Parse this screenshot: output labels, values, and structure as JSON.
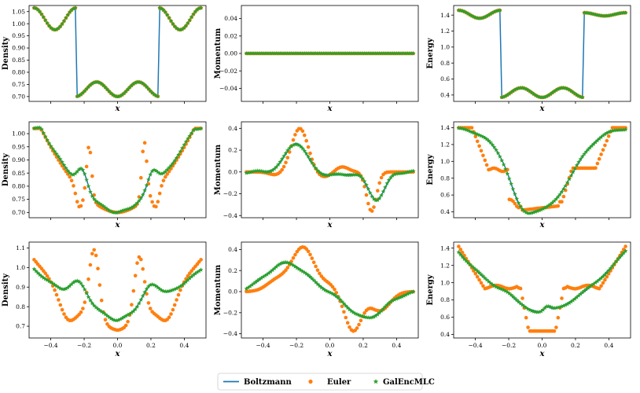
{
  "colors": {
    "boltzmann": "#1f77b4",
    "euler": "#ff7f0e",
    "galenc": "#2ca02c"
  },
  "legend": {
    "placement": "bottom-center",
    "boltzmann": "Boltzmann",
    "euler": "Euler",
    "galenc": "GalEncMLC"
  },
  "chart_data": [
    {
      "type": "line",
      "row": 0,
      "var": "density",
      "ylabel": "Density",
      "xlabel": "x",
      "xlim": [
        -0.53,
        0.53
      ],
      "ylim": [
        0.68,
        1.075
      ],
      "yticks": [
        "0.70",
        "0.75",
        "0.80",
        "0.85",
        "0.90",
        "0.95",
        "1.00",
        "1.05"
      ],
      "xticks": [],
      "series": [
        "Boltzmann",
        "Euler",
        "GalEncMLC"
      ]
    },
    {
      "type": "line",
      "row": 0,
      "var": "momentum",
      "ylabel": "Momentum",
      "xlabel": "x",
      "xlim": [
        -0.53,
        0.53
      ],
      "ylim": [
        -0.055,
        0.055
      ],
      "yticks": [
        "−0.04",
        "−0.02",
        "0.00",
        "0.02",
        "0.04"
      ],
      "xticks": [],
      "series": [
        "Boltzmann",
        "Euler",
        "GalEncMLC"
      ]
    },
    {
      "type": "line",
      "row": 0,
      "var": "energy",
      "ylabel": "Energy",
      "xlabel": "x",
      "xlim": [
        -0.53,
        0.53
      ],
      "ylim": [
        0.32,
        1.52
      ],
      "yticks": [
        "0.4",
        "0.6",
        "0.8",
        "1.0",
        "1.2",
        "1.4"
      ],
      "xticks": [],
      "series": [
        "Boltzmann",
        "Euler",
        "GalEncMLC"
      ]
    },
    {
      "type": "line",
      "row": 1,
      "var": "density",
      "ylabel": "Density",
      "xlabel": "x",
      "xlim": [
        -0.53,
        0.53
      ],
      "ylim": [
        0.68,
        1.045
      ],
      "yticks": [
        "0.70",
        "0.75",
        "0.80",
        "0.85",
        "0.90",
        "0.95",
        "1.00"
      ],
      "xticks": [],
      "series": [
        "Boltzmann",
        "Euler",
        "GalEncMLC"
      ]
    },
    {
      "type": "line",
      "row": 1,
      "var": "momentum",
      "ylabel": "Momentum",
      "xlabel": "x",
      "xlim": [
        -0.53,
        0.53
      ],
      "ylim": [
        -0.42,
        0.46
      ],
      "yticks": [
        "−0.4",
        "−0.2",
        "0.0",
        "0.2",
        "0.4"
      ],
      "xticks": [],
      "series": [
        "Boltzmann",
        "Euler",
        "GalEncMLC"
      ]
    },
    {
      "type": "line",
      "row": 1,
      "var": "energy",
      "ylabel": "Energy",
      "xlabel": "x",
      "xlim": [
        -0.53,
        0.53
      ],
      "ylim": [
        0.33,
        1.47
      ],
      "yticks": [
        "0.4",
        "0.6",
        "0.8",
        "1.0",
        "1.2",
        "1.4"
      ],
      "xticks": [],
      "series": [
        "Boltzmann",
        "Euler",
        "GalEncMLC"
      ]
    },
    {
      "type": "line",
      "row": 2,
      "var": "density",
      "ylabel": "Density",
      "xlabel": "x",
      "xlim": [
        -0.53,
        0.53
      ],
      "ylim": [
        0.64,
        1.13
      ],
      "yticks": [
        "0.7",
        "0.8",
        "0.9",
        "1.0",
        "1.1"
      ],
      "xticks": [
        "−0.4",
        "−0.2",
        "0.0",
        "0.2",
        "0.4"
      ],
      "series": [
        "Boltzmann",
        "Euler",
        "GalEncMLC"
      ]
    },
    {
      "type": "line",
      "row": 2,
      "var": "momentum",
      "ylabel": "Momentum",
      "xlabel": "x",
      "xlim": [
        -0.53,
        0.53
      ],
      "ylim": [
        -0.44,
        0.47
      ],
      "yticks": [
        "−0.4",
        "−0.2",
        "0.0",
        "0.2",
        "0.4"
      ],
      "xticks": [
        "−0.4",
        "−0.2",
        "0.0",
        "0.2",
        "0.4"
      ],
      "series": [
        "Boltzmann",
        "Euler",
        "GalEncMLC"
      ]
    },
    {
      "type": "line",
      "row": 2,
      "var": "energy",
      "ylabel": "Energy",
      "xlabel": "x",
      "xlim": [
        -0.53,
        0.53
      ],
      "ylim": [
        0.36,
        1.47
      ],
      "yticks": [
        "0.4",
        "0.6",
        "0.8",
        "1.0",
        "1.2",
        "1.4"
      ],
      "xticks": [
        "−0.4",
        "−0.2",
        "0.0",
        "0.2",
        "0.4"
      ],
      "series": [
        "Boltzmann",
        "Euler",
        "GalEncMLC"
      ]
    }
  ]
}
